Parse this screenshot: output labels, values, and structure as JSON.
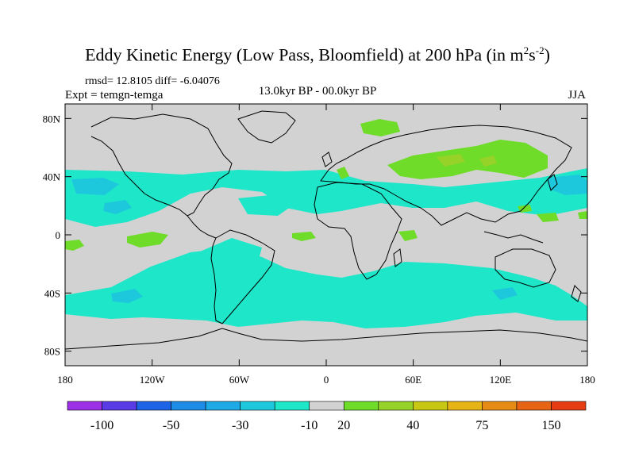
{
  "title": {
    "main": "Eddy Kinetic Energy (Low Pass, Bloomfield) at 200 hPa (in m",
    "sup1": "2",
    "mid": "s",
    "sup2": "-2",
    "end": ")"
  },
  "stats": {
    "text": "rmsd= 12.8105 diff= -6.04076"
  },
  "experiment": {
    "text": "Expt = temgn-temga"
  },
  "period": {
    "text": "13.0kyr BP - 00.0kyr BP"
  },
  "season": {
    "text": "JJA"
  },
  "map": {
    "lat_labels": [
      "80N",
      "40N",
      "0",
      "40S",
      "80S"
    ],
    "lat_values": [
      80,
      40,
      0,
      -40,
      -80
    ],
    "lon_labels": [
      "180",
      "120W",
      "60W",
      "0",
      "60E",
      "120E",
      "180"
    ],
    "lon_values": [
      -180,
      -120,
      -60,
      0,
      60,
      120,
      180
    ],
    "lat_range": [
      -90,
      90
    ],
    "lon_range": [
      -180,
      180
    ]
  },
  "colorbar": {
    "colors": [
      "#9b30e6",
      "#5a3ce6",
      "#1e64e6",
      "#1e8ce6",
      "#1eaae6",
      "#1ec8dc",
      "#1ee6c8",
      "#d2d2d2",
      "#6edc28",
      "#96d228",
      "#c8c814",
      "#e6b414",
      "#e68c14",
      "#e66414",
      "#e63c14"
    ],
    "labels": [
      "-100",
      "-50",
      "-30",
      "-10",
      "20",
      "40",
      "75",
      "150"
    ],
    "label_after_index": [
      1,
      3,
      5,
      7,
      8,
      10,
      12,
      14
    ]
  },
  "colors": {
    "land_bg": "#d2d2d2",
    "cyan": "#1ee6c8",
    "teal": "#1ec8dc",
    "green": "#6edc28",
    "lime": "#96d228"
  }
}
